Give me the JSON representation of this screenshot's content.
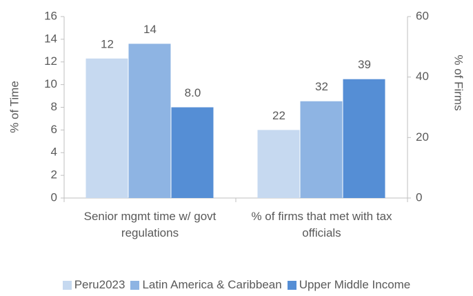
{
  "chart_data": {
    "type": "bar",
    "categories": [
      "Senior mgmt time w/ govt regulations",
      "% of firms that met with tax officials"
    ],
    "category_axes": [
      "y",
      "y2"
    ],
    "ylabel": "% of Time",
    "y2label": "% of Firms",
    "ylim": [
      0,
      16
    ],
    "yticks": [
      0,
      2,
      4,
      6,
      8,
      10,
      12,
      14,
      16
    ],
    "y2lim": [
      0,
      60
    ],
    "y2ticks": [
      0,
      20,
      40,
      60
    ],
    "grid": false,
    "legend": "bottom",
    "series": [
      {
        "name": "Peru2023",
        "color": "#c6d9f0",
        "values": [
          12.3,
          22.5
        ],
        "value_labels": [
          "12",
          "22"
        ]
      },
      {
        "name": "Latin America & Caribbean",
        "color": "#8eb4e3",
        "values": [
          13.6,
          32
        ],
        "value_labels": [
          "14",
          "32"
        ]
      },
      {
        "name": "Upper Middle Income",
        "color": "#558ed5",
        "values": [
          8.0,
          39.3
        ],
        "value_labels": [
          "8.0",
          "39"
        ]
      }
    ]
  }
}
